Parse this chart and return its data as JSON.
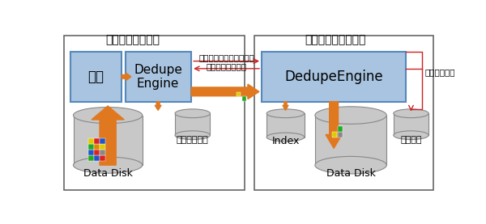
{
  "bg_color": "#ffffff",
  "file_daemon_label": "ファイルデーモン",
  "storage_daemon_label": "ストレージデーモン",
  "box_fill": "#a8c4e0",
  "box_edge": "#5588bb",
  "compress_label": "圧縮",
  "dedupe_engine_left_label": "Dedupe\nEngine",
  "dedupe_engine_right_label": "DedupeEngine",
  "data_queue_label": "データキュー",
  "index_label": "Index",
  "hash_label": "ハッシュ",
  "data_disk_label": "Data Disk",
  "arrow_color": "#e07820",
  "red_color": "#cc2222",
  "hash_send_label": "ハッシュコードのみ送信",
  "no_data_request_label": "ないデータを要求",
  "hash_calc_label": "ハッシュ計算",
  "cyl_fc": "#c8c8c8",
  "cyl_ec": "#888888",
  "frame_edge": "#666666",
  "block_grid": [
    [
      "#22aa22",
      "#2255cc",
      "#dd2222"
    ],
    [
      "#2255cc",
      "#dd2222",
      "#888888"
    ],
    [
      "#22aa22",
      "#dd8800",
      "#ddcc00"
    ],
    [
      "#ddcc00",
      "#dd2222",
      "#2255cc"
    ]
  ],
  "small_blocks_right": [
    [
      "#ddcc00",
      0,
      0
    ],
    [
      "#888888",
      1,
      0
    ],
    [
      "#22aa22",
      1,
      1
    ]
  ],
  "small_blocks_mid": [
    [
      "#ddcc00",
      0,
      0
    ],
    [
      "#22aa22",
      1,
      1
    ]
  ]
}
